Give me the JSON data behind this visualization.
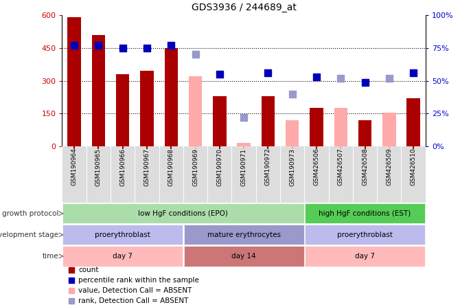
{
  "title": "GDS3936 / 244689_at",
  "samples": [
    "GSM190964",
    "GSM190965",
    "GSM190966",
    "GSM190967",
    "GSM190968",
    "GSM190969",
    "GSM190970",
    "GSM190971",
    "GSM190972",
    "GSM190973",
    "GSM426506",
    "GSM426507",
    "GSM426508",
    "GSM426509",
    "GSM426510"
  ],
  "bar_values": [
    590,
    510,
    330,
    345,
    450,
    null,
    230,
    null,
    230,
    null,
    175,
    null,
    120,
    null,
    220
  ],
  "bar_absent": [
    null,
    null,
    null,
    null,
    null,
    320,
    null,
    15,
    null,
    120,
    null,
    175,
    null,
    155,
    null
  ],
  "rank_present_pct": [
    77,
    77,
    75,
    75,
    77,
    null,
    55,
    null,
    56,
    null,
    53,
    null,
    49,
    null,
    56
  ],
  "rank_absent_pct": [
    null,
    null,
    null,
    null,
    null,
    70,
    null,
    22,
    null,
    40,
    null,
    52,
    null,
    52,
    null
  ],
  "ylim": [
    0,
    600
  ],
  "y2lim": [
    0,
    100
  ],
  "yticks": [
    0,
    150,
    300,
    450,
    600
  ],
  "ytick_labels": [
    "0",
    "150",
    "300",
    "450",
    "600"
  ],
  "y2ticks": [
    0,
    25,
    50,
    75,
    100
  ],
  "y2tick_labels": [
    "0%",
    "25%",
    "50%",
    "75%",
    "100%"
  ],
  "bar_color_present": "#aa0000",
  "bar_color_absent": "#ffaaaa",
  "rank_color_present": "#0000bb",
  "rank_color_absent": "#9999cc",
  "bar_width": 0.55,
  "dot_size": 50,
  "growth_protocol_labels": [
    {
      "text": "low HgF conditions (EPO)",
      "start": 0,
      "end": 9,
      "color": "#aaddaa"
    },
    {
      "text": "high HgF conditions (EST)",
      "start": 10,
      "end": 14,
      "color": "#55cc55"
    }
  ],
  "dev_stage_labels": [
    {
      "text": "proerythroblast",
      "start": 0,
      "end": 4,
      "color": "#bbbbee"
    },
    {
      "text": "mature erythrocytes",
      "start": 5,
      "end": 9,
      "color": "#9999cc"
    },
    {
      "text": "proerythroblast",
      "start": 10,
      "end": 14,
      "color": "#bbbbee"
    }
  ],
  "time_labels": [
    {
      "text": "day 7",
      "start": 0,
      "end": 4,
      "color": "#ffbbbb"
    },
    {
      "text": "day 14",
      "start": 5,
      "end": 9,
      "color": "#cc7777"
    },
    {
      "text": "day 7",
      "start": 10,
      "end": 14,
      "color": "#ffbbbb"
    }
  ],
  "row_labels": [
    "growth protocol",
    "development stage",
    "time"
  ],
  "legend_items": [
    {
      "label": "count",
      "color": "#aa0000",
      "marker": "s"
    },
    {
      "label": "percentile rank within the sample",
      "color": "#0000bb",
      "marker": "s"
    },
    {
      "label": "value, Detection Call = ABSENT",
      "color": "#ffaaaa",
      "marker": "s"
    },
    {
      "label": "rank, Detection Call = ABSENT",
      "color": "#9999cc",
      "marker": "s"
    }
  ],
  "label_bg_color": "#dddddd",
  "plot_bg_color": "#ffffff",
  "ylabel_color_left": "#cc0000",
  "ylabel_color_right": "#0000cc"
}
